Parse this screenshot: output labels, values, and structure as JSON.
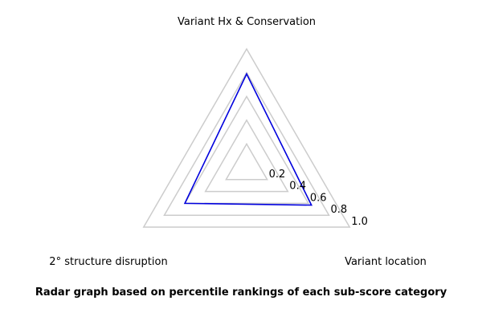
{
  "chart_data": {
    "type": "radar",
    "axes": [
      "Variant Hx & Conservation",
      "Variant location",
      "2° structure disruption"
    ],
    "rings": [
      0.2,
      0.4,
      0.6,
      0.8,
      1.0
    ],
    "tick_labels": [
      "0.2",
      "0.4",
      "0.6",
      "0.8",
      "1.0"
    ],
    "range": [
      0,
      1.0
    ],
    "series": [
      {
        "values": [
          0.79,
          0.63,
          0.6
        ],
        "color": "#0000dd"
      }
    ],
    "grid_color": "#cccccc",
    "grid": true,
    "title": "Radar graph based on percentile rankings of each sub-score category"
  }
}
